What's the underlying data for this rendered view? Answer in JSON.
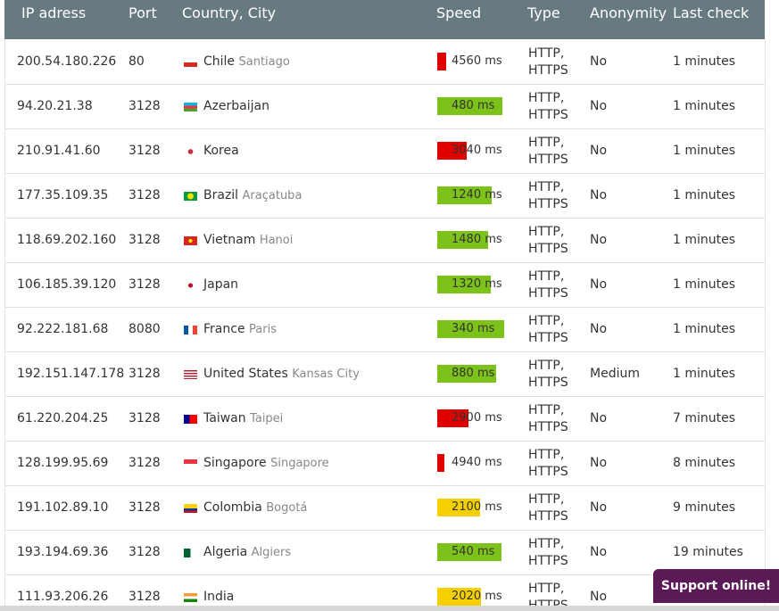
{
  "header": {
    "columns": [
      "IP adress",
      "Port",
      "Country, City",
      "Speed",
      "Type",
      "Anonymity",
      "Last check"
    ]
  },
  "table": {
    "rows": [
      {
        "ip": "200.54.180.226",
        "port": "80",
        "country": "Chile",
        "city": "Santiago",
        "speed": "4560 ms",
        "type": "HTTP, HTTPS",
        "anonymity": "No",
        "last_check": "1 minutes"
      },
      {
        "ip": "94.20.21.38",
        "port": "3128",
        "country": "Azerbaijan",
        "speed": "480 ms",
        "type": "HTTP, HTTPS",
        "anonymity": "No",
        "last_check": "1 minutes"
      },
      {
        "ip": "210.91.41.60",
        "port": "3128",
        "country": "Korea",
        "speed": "3040 ms",
        "type": "HTTP, HTTPS",
        "anonymity": "No",
        "last_check": "1 minutes"
      },
      {
        "ip": "177.35.109.35",
        "port": "3128",
        "country": "Brazil",
        "city": "Araçatuba",
        "speed": "1240 ms",
        "type": "HTTP, HTTPS",
        "anonymity": "No",
        "last_check": "1 minutes"
      },
      {
        "ip": "118.69.202.160",
        "port": "3128",
        "country": "Vietnam",
        "city": "Hanoi",
        "speed": "1480 ms",
        "type": "HTTP, HTTPS",
        "anonymity": "No",
        "last_check": "1 minutes"
      },
      {
        "ip": "106.185.39.120",
        "port": "3128",
        "country": "Japan",
        "speed": "1320 ms",
        "type": "HTTP, HTTPS",
        "anonymity": "No",
        "last_check": "1 minutes"
      },
      {
        "ip": "92.222.181.68",
        "port": "8080",
        "country": "France",
        "city": "Paris",
        "speed": "340 ms",
        "type": "HTTP, HTTPS",
        "anonymity": "No",
        "last_check": "1 minutes"
      },
      {
        "ip": "192.151.147.178",
        "port": "3128",
        "country": "United States",
        "city": "Kansas City",
        "speed": "880 ms",
        "type": "HTTP, HTTPS",
        "anonymity": "Medium",
        "last_check": "1 minutes"
      },
      {
        "ip": "61.220.204.25",
        "port": "3128",
        "country": "Taiwan",
        "city": "Taipei",
        "speed": "2900 ms",
        "type": "HTTP, HTTPS",
        "anonymity": "No",
        "last_check": "7 minutes"
      },
      {
        "ip": "128.199.95.69",
        "port": "3128",
        "country": "Singapore",
        "city": "Singapore",
        "speed": "4940 ms",
        "type": "HTTP, HTTPS",
        "anonymity": "No",
        "last_check": "8 minutes"
      },
      {
        "ip": "191.102.89.10",
        "port": "3128",
        "country": "Colombia",
        "city": "Bogotá",
        "speed": "2100 ms",
        "type": "HTTP, HTTPS",
        "anonymity": "No",
        "last_check": "9 minutes"
      },
      {
        "ip": "193.194.69.36",
        "port": "3128",
        "country": "Algeria",
        "city": "Algiers",
        "speed": "540 ms",
        "type": "HTTP, HTTPS",
        "anonymity": "No",
        "last_check": "19 minutes"
      },
      {
        "ip": "111.93.206.26",
        "port": "3128",
        "country": "India",
        "speed": "2020 ms",
        "type": "HTTP, HTTPS",
        "anonymity": "No",
        "last_check": ""
      }
    ]
  },
  "support_button": {
    "label": "Support online!"
  }
}
